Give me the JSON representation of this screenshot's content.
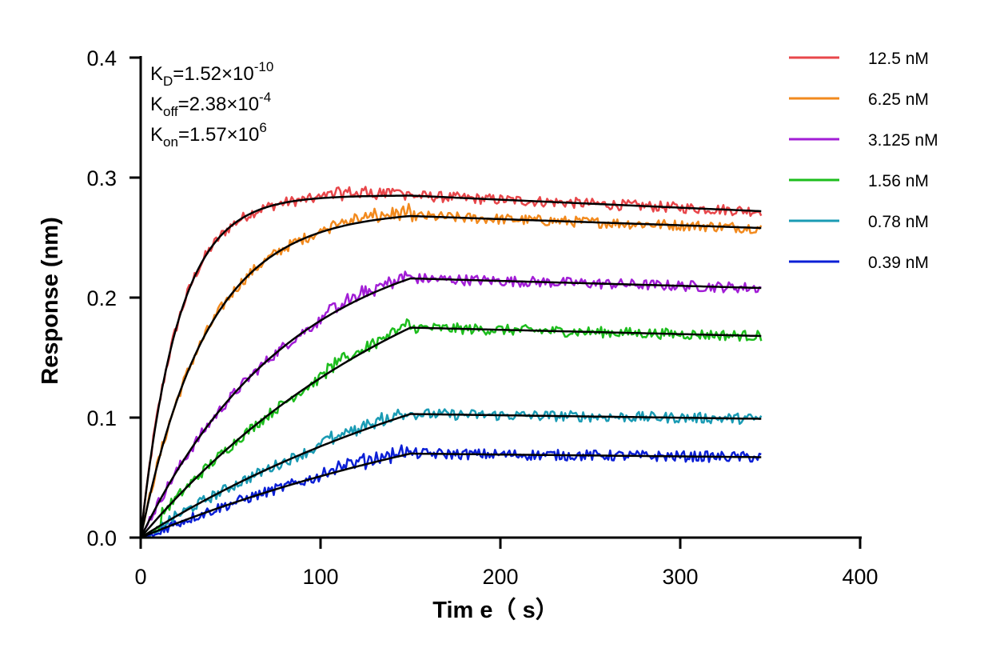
{
  "chart_data": {
    "type": "line",
    "title": "",
    "xlabel": "Tim e（ s）",
    "ylabel": "Response (nm)",
    "xlim": [
      0,
      400
    ],
    "ylim": [
      0,
      0.4
    ],
    "x_ticks": [
      "0",
      "100",
      "200",
      "300",
      "400"
    ],
    "y_ticks": [
      "0.0",
      "0.1",
      "0.2",
      "0.3",
      "0.4"
    ],
    "grid": false,
    "legend_position": "top-right",
    "association_end": 150,
    "dissociation_end": 345,
    "kinetics": [
      {
        "base": "K",
        "sub": "D",
        "value": "=1.52×10",
        "exp": "-10"
      },
      {
        "base": "K",
        "sub": "off",
        "value": "=2.38×10",
        "exp": "-4"
      },
      {
        "base": "K",
        "sub": "on",
        "value": "=1.57×10",
        "exp": "6"
      }
    ],
    "series": [
      {
        "name": "12.5 nM",
        "color": "#e8474b",
        "plateau": 0.285,
        "end_value": 0.272,
        "rate": 0.048
      },
      {
        "name": "6.25 nM",
        "color": "#f28a1e",
        "plateau": 0.268,
        "end_value": 0.258,
        "rate": 0.027
      },
      {
        "name": "3.125 nM",
        "color": "#a21ed6",
        "plateau": 0.216,
        "end_value": 0.208,
        "rate": 0.012
      },
      {
        "name": "1.56 nM",
        "color": "#1dbd1d",
        "plateau": 0.175,
        "end_value": 0.168,
        "rate": 0.006
      },
      {
        "name": "0.78 nM",
        "color": "#1a9bb4",
        "plateau": 0.103,
        "end_value": 0.099,
        "rate": 0.0045
      },
      {
        "name": "0.39 nM",
        "color": "#0b1fd6",
        "plateau": 0.07,
        "end_value": 0.067,
        "rate": 0.004
      }
    ]
  }
}
